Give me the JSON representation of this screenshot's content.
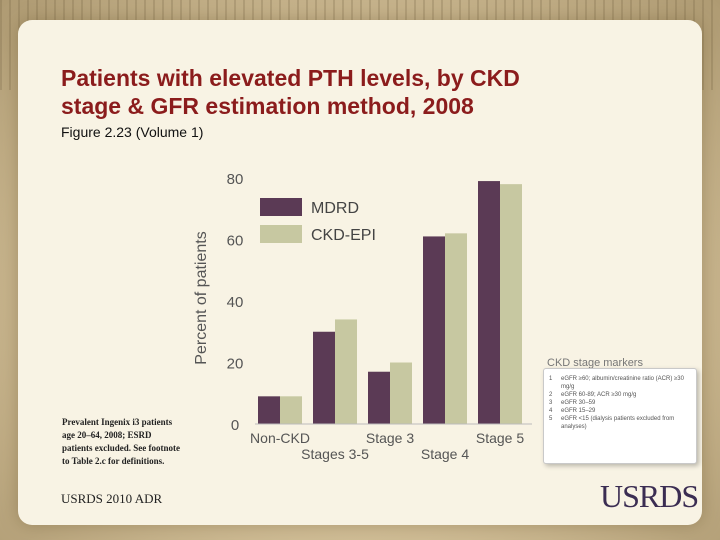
{
  "slide": {
    "title_lines": [
      "Patients with elevated PTH levels, by CKD",
      "stage & GFR estimation method, 2008"
    ],
    "subtitle": "Figure 2.23 (Volume 1)",
    "footnote": "Prevalent Ingenix i3 patients age 20–64, 2008; ESRD patients excluded. See footnote to Table 2.c for definitions.",
    "footer": "USRDS 2010 ADR",
    "logo": "USRDS"
  },
  "stage_markers": {
    "title": "CKD stage markers",
    "items": [
      {
        "num": "1",
        "text": "eGFR ≥60; albumin/creatinine ratio (ACR) ≥30 mg/g"
      },
      {
        "num": "2",
        "text": "eGFR 60-89; ACR ≥30 mg/g"
      },
      {
        "num": "3",
        "text": "eGFR 30–59"
      },
      {
        "num": "4",
        "text": "eGFR 15–29"
      },
      {
        "num": "5",
        "text": "eGFR <15 (dialysis patients excluded from analyses)"
      }
    ]
  },
  "chart_data": {
    "type": "bar",
    "title": "",
    "xlabel": "",
    "ylabel": "Percent of patients",
    "ylim": [
      0,
      80
    ],
    "yticks": [
      0,
      20,
      40,
      60,
      80
    ],
    "categories": [
      "Non-CKD",
      "Stages 3-5",
      "Stage 3",
      "Stage 4",
      "Stage 5"
    ],
    "series": [
      {
        "name": "MDRD",
        "color": "#5b3a55",
        "values": [
          9,
          30,
          17,
          61,
          79
        ]
      },
      {
        "name": "CKD-EPI",
        "color": "#c7c8a1",
        "values": [
          9,
          34,
          20,
          62,
          78
        ]
      }
    ],
    "legend_position": "top-left",
    "grid": false
  }
}
